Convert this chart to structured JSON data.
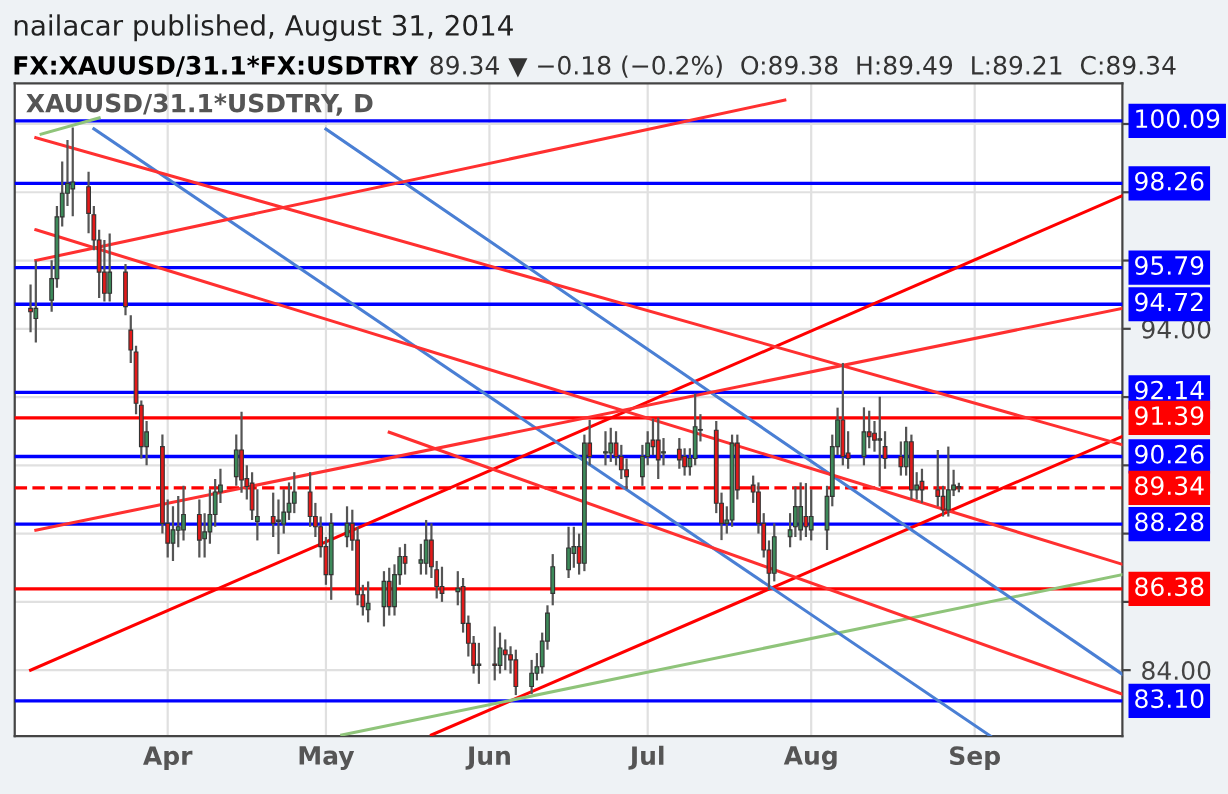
{
  "chart_data": {
    "type": "candlestick",
    "title": "FX:XAUUSD/31.1*FX:USDTRY",
    "subtitle": "89.34 ▼ −0.18 (−0.2%)  O:89.38  H:89.49  L:89.21  C:89.34",
    "annotations": [
      "nailacar published, August 31, 2014",
      "XAUUSD/31.1*USDTRY, D"
    ],
    "x": [
      "2014-03-06",
      "2014-03-07",
      "2014-03-10",
      "2014-03-11",
      "2014-03-12",
      "2014-03-13",
      "2014-03-14",
      "2014-03-17",
      "2014-03-18",
      "2014-03-19",
      "2014-03-20",
      "2014-03-21",
      "2014-03-24",
      "2014-03-25",
      "2014-03-26",
      "2014-03-27",
      "2014-03-28",
      "2014-03-31",
      "2014-04-01",
      "2014-04-02",
      "2014-04-03",
      "2014-04-04",
      "2014-04-07",
      "2014-04-08",
      "2014-04-09",
      "2014-04-10",
      "2014-04-11",
      "2014-04-14",
      "2014-04-15",
      "2014-04-16",
      "2014-04-17",
      "2014-04-18",
      "2014-04-21",
      "2014-04-22",
      "2014-04-23",
      "2014-04-24",
      "2014-04-25",
      "2014-04-28",
      "2014-04-29",
      "2014-04-30",
      "2014-05-01",
      "2014-05-02",
      "2014-05-05",
      "2014-05-06",
      "2014-05-07",
      "2014-05-08",
      "2014-05-09",
      "2014-05-12",
      "2014-05-13",
      "2014-05-14",
      "2014-05-15",
      "2014-05-16",
      "2014-05-19",
      "2014-05-20",
      "2014-05-21",
      "2014-05-22",
      "2014-05-23",
      "2014-05-26",
      "2014-05-27",
      "2014-05-28",
      "2014-05-29",
      "2014-05-30",
      "2014-06-02",
      "2014-06-03",
      "2014-06-04",
      "2014-06-05",
      "2014-06-06",
      "2014-06-09",
      "2014-06-10",
      "2014-06-11",
      "2014-06-12",
      "2014-06-13",
      "2014-06-16",
      "2014-06-17",
      "2014-06-18",
      "2014-06-19",
      "2014-06-20",
      "2014-06-23",
      "2014-06-24",
      "2014-06-25",
      "2014-06-26",
      "2014-06-27",
      "2014-06-30",
      "2014-07-01",
      "2014-07-02",
      "2014-07-03",
      "2014-07-04",
      "2014-07-07",
      "2014-07-08",
      "2014-07-09",
      "2014-07-10",
      "2014-07-11",
      "2014-07-14",
      "2014-07-15",
      "2014-07-16",
      "2014-07-17",
      "2014-07-18",
      "2014-07-21",
      "2014-07-22",
      "2014-07-23",
      "2014-07-24",
      "2014-07-25",
      "2014-07-28",
      "2014-07-29",
      "2014-07-30",
      "2014-07-31",
      "2014-08-01",
      "2014-08-04",
      "2014-08-05",
      "2014-08-06",
      "2014-08-07",
      "2014-08-08",
      "2014-08-11",
      "2014-08-12",
      "2014-08-13",
      "2014-08-14",
      "2014-08-15",
      "2014-08-18",
      "2014-08-19",
      "2014-08-20",
      "2014-08-21",
      "2014-08-22",
      "2014-08-25",
      "2014-08-26",
      "2014-08-27",
      "2014-08-28",
      "2014-08-29"
    ],
    "ohlc": [
      [
        94.6,
        95.3,
        93.9,
        94.5
      ],
      [
        94.3,
        96.0,
        93.6,
        94.6
      ],
      [
        94.84,
        96.01,
        94.5,
        95.47
      ],
      [
        95.47,
        97.6,
        95.2,
        97.28
      ],
      [
        97.28,
        98.9,
        97.0,
        97.97
      ],
      [
        97.97,
        99.53,
        97.6,
        98.26
      ],
      [
        98.1,
        99.9,
        97.3,
        98.3
      ],
      [
        98.16,
        98.6,
        96.8,
        97.38
      ],
      [
        97.34,
        97.6,
        96.3,
        96.6
      ],
      [
        96.6,
        96.9,
        94.9,
        95.66
      ],
      [
        95.66,
        96.6,
        94.8,
        95.04
      ],
      [
        95.04,
        96.79,
        94.8,
        95.66
      ],
      [
        95.66,
        95.9,
        94.4,
        94.65
      ],
      [
        93.96,
        94.4,
        93.0,
        93.38
      ],
      [
        93.32,
        93.5,
        91.5,
        91.82
      ],
      [
        91.76,
        91.9,
        90.2,
        90.55
      ],
      [
        90.55,
        91.3,
        90.0,
        90.98
      ],
      [
        90.55,
        90.9,
        88.0,
        88.3
      ],
      [
        88.3,
        89.0,
        87.3,
        87.72
      ],
      [
        87.72,
        88.8,
        87.2,
        88.11
      ],
      [
        88.1,
        89.1,
        87.6,
        88.2
      ],
      [
        88.11,
        89.4,
        87.8,
        88.56
      ],
      [
        88.56,
        89.0,
        87.3,
        87.81
      ],
      [
        87.85,
        88.6,
        87.3,
        88.05
      ],
      [
        88.05,
        89.3,
        87.7,
        88.56
      ],
      [
        88.56,
        89.6,
        88.2,
        89.22
      ],
      [
        89.22,
        89.9,
        88.9,
        89.42
      ],
      [
        89.67,
        90.9,
        89.4,
        90.45
      ],
      [
        90.45,
        91.57,
        89.2,
        89.57
      ],
      [
        89.61,
        90.0,
        89.0,
        89.38
      ],
      [
        89.48,
        89.8,
        88.4,
        88.69
      ],
      [
        88.36,
        89.3,
        87.8,
        88.5
      ],
      [
        88.5,
        89.2,
        87.9,
        88.3
      ],
      [
        88.36,
        89.0,
        87.4,
        88.4
      ],
      [
        88.28,
        89.3,
        88.0,
        88.63
      ],
      [
        88.63,
        89.5,
        88.4,
        88.89
      ],
      [
        88.89,
        89.8,
        88.6,
        89.22
      ],
      [
        89.22,
        89.8,
        88.2,
        88.5
      ],
      [
        88.5,
        88.9,
        87.9,
        88.2
      ],
      [
        88.2,
        88.5,
        87.3,
        87.62
      ],
      [
        87.62,
        87.9,
        86.5,
        86.8
      ],
      [
        86.8,
        88.6,
        86.06,
        88.3
      ],
      [
        87.91,
        88.8,
        87.6,
        88.3
      ],
      [
        88.3,
        88.7,
        87.5,
        87.81
      ],
      [
        87.81,
        88.2,
        85.9,
        86.21
      ],
      [
        86.21,
        86.5,
        85.6,
        85.86
      ],
      [
        85.77,
        86.6,
        85.4,
        85.96
      ],
      [
        85.86,
        86.9,
        85.28,
        86.6
      ],
      [
        86.6,
        87.0,
        85.6,
        85.86
      ],
      [
        85.86,
        87.1,
        85.6,
        86.8
      ],
      [
        86.8,
        87.6,
        86.5,
        87.33
      ],
      [
        87.33,
        87.7,
        86.8,
        87.13
      ],
      [
        87.13,
        87.7,
        86.8,
        87.23
      ],
      [
        87.13,
        88.4,
        86.8,
        87.81
      ],
      [
        87.81,
        88.3,
        86.7,
        87.03
      ],
      [
        86.94,
        87.2,
        86.1,
        86.45
      ],
      [
        86.45,
        87.03,
        86.0,
        86.25
      ],
      [
        86.3,
        86.9,
        85.9,
        86.4
      ],
      [
        86.45,
        86.7,
        85.1,
        85.37
      ],
      [
        85.37,
        85.6,
        84.4,
        84.79
      ],
      [
        84.79,
        85.0,
        83.9,
        84.14
      ],
      [
        84.14,
        84.8,
        83.6,
        84.18
      ],
      [
        84.18,
        85.28,
        83.7,
        84.14
      ],
      [
        84.14,
        85.1,
        83.9,
        84.65
      ],
      [
        84.59,
        84.9,
        84.0,
        84.45
      ],
      [
        84.45,
        84.7,
        83.9,
        84.3
      ],
      [
        84.3,
        84.6,
        83.27,
        83.52
      ],
      [
        83.52,
        84.3,
        83.3,
        83.91
      ],
      [
        83.91,
        84.5,
        83.7,
        84.1
      ],
      [
        84.1,
        85.1,
        83.9,
        84.85
      ],
      [
        84.85,
        85.9,
        84.6,
        85.67
      ],
      [
        86.25,
        87.4,
        85.9,
        87.03
      ],
      [
        86.94,
        88.2,
        86.7,
        87.58
      ],
      [
        87.42,
        88.2,
        87.0,
        87.62
      ],
      [
        87.62,
        88.0,
        86.8,
        87.13
      ],
      [
        87.13,
        90.9,
        86.9,
        90.65
      ],
      [
        90.65,
        91.33,
        90.0,
        90.26
      ],
      [
        90.36,
        91.0,
        90.0,
        90.4
      ],
      [
        90.36,
        91.1,
        90.1,
        90.65
      ],
      [
        90.65,
        91.0,
        90.0,
        90.26
      ],
      [
        90.26,
        90.6,
        89.6,
        89.87
      ],
      [
        89.87,
        90.2,
        89.3,
        89.67
      ],
      [
        89.67,
        90.6,
        89.4,
        90.26
      ],
      [
        90.26,
        91.0,
        90.0,
        90.65
      ],
      [
        90.74,
        91.37,
        90.3,
        90.55
      ],
      [
        90.74,
        91.4,
        89.6,
        90.16
      ],
      [
        90.36,
        90.8,
        90.0,
        90.4
      ],
      [
        90.47,
        90.8,
        89.9,
        90.16
      ],
      [
        90.26,
        90.5,
        89.7,
        89.96
      ],
      [
        89.96,
        90.5,
        89.7,
        90.2
      ],
      [
        90.2,
        92.11,
        90.0,
        91.13
      ],
      [
        91.03,
        91.5,
        90.7,
        91.05
      ],
      [
        91.03,
        91.3,
        88.6,
        88.89
      ],
      [
        88.89,
        89.2,
        87.81,
        88.3
      ],
      [
        88.3,
        88.8,
        88.0,
        88.4
      ],
      [
        88.4,
        90.9,
        88.2,
        90.65
      ],
      [
        90.65,
        90.9,
        89.0,
        89.28
      ],
      [
        89.42,
        89.7,
        88.9,
        89.22
      ],
      [
        89.22,
        89.5,
        88.0,
        88.3
      ],
      [
        88.3,
        88.6,
        87.3,
        87.52
      ],
      [
        87.52,
        87.8,
        86.35,
        86.84
      ],
      [
        86.84,
        88.3,
        86.6,
        87.91
      ],
      [
        87.91,
        88.6,
        87.6,
        88.11
      ],
      [
        88.2,
        89.38,
        87.9,
        88.79
      ],
      [
        88.11,
        89.5,
        87.8,
        88.79
      ],
      [
        88.5,
        89.48,
        87.9,
        88.2
      ],
      [
        88.11,
        89.3,
        87.8,
        88.5
      ],
      [
        88.11,
        89.4,
        87.52,
        89.09
      ],
      [
        89.09,
        90.9,
        88.8,
        90.55
      ],
      [
        90.55,
        91.69,
        90.3,
        91.33
      ],
      [
        91.33,
        93.0,
        90.0,
        90.26
      ],
      [
        90.36,
        91.0,
        89.9,
        90.2
      ],
      [
        90.26,
        91.7,
        90.0,
        90.98
      ],
      [
        90.98,
        91.6,
        90.5,
        90.84
      ],
      [
        90.94,
        91.3,
        90.4,
        90.74
      ],
      [
        90.74,
        92.01,
        89.38,
        90.78
      ],
      [
        90.55,
        91.0,
        89.9,
        90.2
      ],
      [
        90.26,
        90.7,
        89.7,
        89.96
      ],
      [
        89.96,
        91.13,
        89.7,
        90.69
      ],
      [
        90.69,
        90.9,
        89.0,
        89.28
      ],
      [
        89.28,
        89.8,
        89.0,
        89.42
      ],
      [
        89.53,
        89.9,
        88.9,
        89.28
      ],
      [
        89.28,
        90.45,
        88.8,
        89.09
      ],
      [
        89.09,
        89.4,
        88.5,
        88.69
      ],
      [
        88.69,
        90.55,
        88.5,
        89.28
      ],
      [
        89.28,
        89.87,
        89.1,
        89.42
      ],
      [
        89.38,
        89.49,
        89.21,
        89.34
      ]
    ],
    "colors": [
      "#e31a1a",
      "#3d8a5a",
      "#3d8a5a",
      "#3d8a5a",
      "#3d8a5a",
      "#3d8a5a",
      "#3d8a5a",
      "#e31a1a",
      "#e31a1a",
      "#e31a1a",
      "#e31a1a",
      "#3d8a5a",
      "#e31a1a",
      "#e31a1a",
      "#e31a1a",
      "#e31a1a",
      "#3d8a5a",
      "#e31a1a",
      "#e31a1a",
      "#3d8a5a",
      "#3d8a5a",
      "#3d8a5a",
      "#e31a1a",
      "#3d8a5a",
      "#3d8a5a",
      "#3d8a5a",
      "#3d8a5a",
      "#3d8a5a",
      "#e31a1a",
      "#e31a1a",
      "#e31a1a",
      "#3d8a5a",
      "#e31a1a",
      "#3d8a5a",
      "#3d8a5a",
      "#3d8a5a",
      "#3d8a5a",
      "#e31a1a",
      "#e31a1a",
      "#e31a1a",
      "#e31a1a",
      "#3d8a5a",
      "#3d8a5a",
      "#e31a1a",
      "#e31a1a",
      "#e31a1a",
      "#3d8a5a",
      "#3d8a5a",
      "#e31a1a",
      "#3d8a5a",
      "#3d8a5a",
      "#e31a1a",
      "#3d8a5a",
      "#3d8a5a",
      "#e31a1a",
      "#e31a1a",
      "#e31a1a",
      "#3d8a5a",
      "#e31a1a",
      "#e31a1a",
      "#e31a1a",
      "#3d8a5a",
      "#e31a1a",
      "#3d8a5a",
      "#e31a1a",
      "#e31a1a",
      "#e31a1a",
      "#3d8a5a",
      "#3d8a5a",
      "#3d8a5a",
      "#3d8a5a",
      "#3d8a5a",
      "#3d8a5a",
      "#3d8a5a",
      "#e31a1a",
      "#3d8a5a",
      "#e31a1a",
      "#3d8a5a",
      "#3d8a5a",
      "#e31a1a",
      "#e31a1a",
      "#e31a1a",
      "#3d8a5a",
      "#3d8a5a",
      "#e31a1a",
      "#e31a1a",
      "#3d8a5a",
      "#e31a1a",
      "#e31a1a",
      "#3d8a5a",
      "#3d8a5a",
      "#3d8a5a",
      "#e31a1a",
      "#e31a1a",
      "#3d8a5a",
      "#3d8a5a",
      "#e31a1a",
      "#e31a1a",
      "#e31a1a",
      "#e31a1a",
      "#e31a1a",
      "#3d8a5a",
      "#3d8a5a",
      "#3d8a5a",
      "#3d8a5a",
      "#e31a1a",
      "#3d8a5a",
      "#3d8a5a",
      "#3d8a5a",
      "#3d8a5a",
      "#e31a1a",
      "#e31a1a",
      "#3d8a5a",
      "#e31a1a",
      "#e31a1a",
      "#3d8a5a",
      "#e31a1a",
      "#e31a1a",
      "#3d8a5a",
      "#e31a1a",
      "#3d8a5a",
      "#e31a1a",
      "#e31a1a",
      "#e31a1a",
      "#3d8a5a",
      "#3d8a5a",
      "#e31a1a"
    ],
    "series": [
      {
        "type": "line",
        "x": [
          "2014-03-06",
          "2014-09-29"
        ],
        "values": [
          84.0,
          97.9
        ],
        "color": "#ff0000"
      },
      {
        "type": "line",
        "x": [
          "2014-05-21",
          "2014-09-29"
        ],
        "values": [
          82.1,
          90.85
        ],
        "color": "#ff0000"
      },
      {
        "type": "line",
        "x": [
          "2014-05-04",
          "2014-09-29"
        ],
        "values": [
          82.1,
          86.8
        ],
        "color": "#8fc47a"
      },
      {
        "type": "line",
        "x": [
          "2014-03-08",
          "2014-03-19"
        ],
        "values": [
          99.7,
          100.18
        ],
        "color": "#8fc47a"
      },
      {
        "type": "line",
        "x": [
          "2014-03-18",
          "2014-09-04"
        ],
        "values": [
          99.86,
          82.07
        ],
        "color": "#4a7fd4"
      },
      {
        "type": "line",
        "x": [
          "2014-05-01",
          "2014-09-29"
        ],
        "values": [
          99.85,
          83.88
        ],
        "color": "#4a7fd4"
      },
      {
        "type": "line",
        "x": [
          "2014-03-07",
          "2014-07-27"
        ],
        "values": [
          96.0,
          100.7
        ],
        "color": "#ff3030"
      },
      {
        "type": "line",
        "x": [
          "2014-03-07",
          "2014-09-29"
        ],
        "values": [
          88.1,
          94.6
        ],
        "color": "#ff3030"
      },
      {
        "type": "line",
        "x": [
          "2014-03-07",
          "2014-09-29"
        ],
        "values": [
          99.6,
          90.6
        ],
        "color": "#ff3030"
      },
      {
        "type": "line",
        "x": [
          "2014-03-07",
          "2014-09-29"
        ],
        "values": [
          96.9,
          87.1
        ],
        "color": "#ff3030"
      },
      {
        "type": "line",
        "x": [
          "2014-05-13",
          "2014-09-29"
        ],
        "values": [
          90.97,
          83.3
        ],
        "color": "#ff3030"
      }
    ],
    "ref_lines": [
      {
        "axis": "y",
        "value": 100.09,
        "label": "100.09",
        "color": "#0000ff"
      },
      {
        "axis": "y",
        "value": 98.26,
        "label": "98.26",
        "color": "#0000ff"
      },
      {
        "axis": "y",
        "value": 95.79,
        "label": "95.79",
        "color": "#0000ff"
      },
      {
        "axis": "y",
        "value": 94.72,
        "label": "94.72",
        "color": "#0000ff"
      },
      {
        "axis": "y",
        "value": 92.14,
        "label": "92.14",
        "color": "#0000ff"
      },
      {
        "axis": "y",
        "value": 91.39,
        "label": "91.39",
        "color": "#ff0000"
      },
      {
        "axis": "y",
        "value": 90.26,
        "label": "90.26",
        "color": "#0000ff"
      },
      {
        "axis": "y",
        "value": 89.34,
        "label": "89.34",
        "color": "#ff0000",
        "line_style": "dashed"
      },
      {
        "axis": "y",
        "value": 88.28,
        "label": "88.28",
        "color": "#0000ff"
      },
      {
        "axis": "y",
        "value": 86.38,
        "label": "86.38",
        "color": "#ff0000"
      },
      {
        "axis": "y",
        "value": 83.1,
        "label": "83.10",
        "color": "#0000ff"
      }
    ],
    "xlim": [
      "2014-03-03",
      "2014-09-29"
    ],
    "xticks": [
      {
        "value": "2014-04-01",
        "label": "Apr"
      },
      {
        "value": "2014-05-01",
        "label": "May"
      },
      {
        "value": "2014-06-01",
        "label": "Jun"
      },
      {
        "value": "2014-07-01",
        "label": "Jul"
      },
      {
        "value": "2014-08-01",
        "label": "Aug"
      },
      {
        "value": "2014-09-01",
        "label": "Sep"
      }
    ],
    "ylim": [
      82.07,
      101.19
    ],
    "yticks": [
      {
        "value": 84,
        "label": "84.00"
      },
      {
        "value": 86,
        "label": null
      },
      {
        "value": 88,
        "label": null
      },
      {
        "value": 90,
        "label": null
      },
      {
        "value": 92,
        "label": null
      },
      {
        "value": 94,
        "label": "94.00"
      },
      {
        "value": 96,
        "label": null
      },
      {
        "value": 98,
        "label": null
      },
      {
        "value": 100,
        "label": null
      }
    ],
    "grid": true,
    "legend": false
  }
}
